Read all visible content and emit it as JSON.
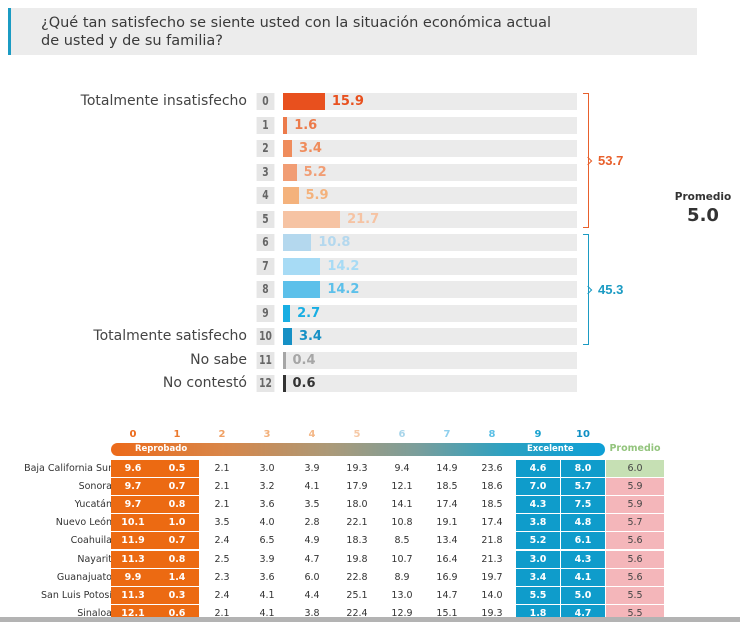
{
  "question": {
    "line1": "¿Qué tan satisfecho se siente usted con la situación económica actual",
    "line2": "de usted y de su familia?"
  },
  "colors": {
    "title_accent": "#1b9bc3",
    "unsatisfied_group": "#e8602c",
    "satisfied_group": "#1b9bc3"
  },
  "chart_data": {
    "type": "bar",
    "orientation": "horizontal",
    "categories": [
      "0",
      "1",
      "2",
      "3",
      "4",
      "5",
      "6",
      "7",
      "8",
      "9",
      "10",
      "11",
      "12"
    ],
    "row_labels": {
      "0": "Totalmente insatisfecho",
      "10": "Totalmente satisfecho",
      "11": "No sabe",
      "12": "No contestó"
    },
    "values": [
      15.9,
      1.6,
      3.4,
      5.2,
      5.9,
      21.7,
      10.8,
      14.2,
      14.2,
      2.7,
      3.4,
      0.4,
      0.6
    ],
    "value_labels": [
      "15.9",
      "1.6",
      "3.4",
      "5.2",
      "5.9",
      "21.7",
      "10.8",
      "14.2",
      "14.2",
      "2.7",
      "3.4",
      "0.4",
      "0.6"
    ],
    "bar_colors": [
      "#e8501e",
      "#ec7a4a",
      "#ef8c5c",
      "#f19d74",
      "#f4b27c",
      "#f6c3a3",
      "#b4d8ee",
      "#a7dbf5",
      "#5cc0ea",
      "#18aee3",
      "#1690c5",
      "#a6a6a6",
      "#333333"
    ],
    "label_colors": [
      "#e8501e",
      "#ec7a4a",
      "#ef8c5c",
      "#f19d74",
      "#f4b27c",
      "#f6c3a3",
      "#b4d8ee",
      "#a7dbf5",
      "#5cc0ea",
      "#18aee3",
      "#1690c5",
      "#a6a6a6",
      "#333333"
    ],
    "xlim": [
      0,
      100
    ],
    "groups": [
      {
        "name": "unsatisfied",
        "from": "0",
        "to": "5",
        "total": "53.7",
        "color": "#e8602c"
      },
      {
        "name": "satisfied",
        "from": "6",
        "to": "10",
        "total": "45.3",
        "color": "#1b9bc3"
      }
    ],
    "average_label": "Promedio",
    "average_value": "5.0"
  },
  "table": {
    "columns": [
      "0",
      "1",
      "2",
      "3",
      "4",
      "5",
      "6",
      "7",
      "8",
      "9",
      "10"
    ],
    "column_colors": [
      "#ec6a1a",
      "#ec7a2e",
      "#f0a064",
      "#f3b07a",
      "#f4b888",
      "#f6c9a6",
      "#a8d5ea",
      "#8fd0ee",
      "#5bbfe5",
      "#1aa2cf",
      "#0e8fc4"
    ],
    "scale_left": "Reprobado",
    "scale_right": "Excelente",
    "promedio_header": "Promedio",
    "rows": [
      {
        "state": "Baja California Sur",
        "values": [
          "9.6",
          "0.5",
          "2.1",
          "3.0",
          "3.9",
          "19.3",
          "9.4",
          "14.9",
          "23.6",
          "4.6",
          "8.0"
        ],
        "promedio": "6.0",
        "promedio_color": "#c6e0b4"
      },
      {
        "state": "Sonora",
        "values": [
          "9.7",
          "0.7",
          "2.1",
          "3.2",
          "4.1",
          "17.9",
          "12.1",
          "18.5",
          "18.6",
          "7.0",
          "5.7"
        ],
        "promedio": "5.9",
        "promedio_color": "#f4b6ba"
      },
      {
        "state": "Yucatán",
        "values": [
          "9.7",
          "0.8",
          "2.1",
          "3.6",
          "3.5",
          "18.0",
          "14.1",
          "17.4",
          "18.5",
          "4.3",
          "7.5"
        ],
        "promedio": "5.9",
        "promedio_color": "#f4b6ba"
      },
      {
        "state": "Nuevo León",
        "values": [
          "10.1",
          "1.0",
          "3.5",
          "4.0",
          "2.8",
          "22.1",
          "10.8",
          "19.1",
          "17.4",
          "3.8",
          "4.8"
        ],
        "promedio": "5.7",
        "promedio_color": "#f4b6ba"
      },
      {
        "state": "Coahuila",
        "values": [
          "11.9",
          "0.7",
          "2.4",
          "6.5",
          "4.9",
          "18.3",
          "8.5",
          "13.4",
          "21.8",
          "5.2",
          "6.1"
        ],
        "promedio": "5.6",
        "promedio_color": "#f4b6ba"
      },
      {
        "state": "Nayarit",
        "values": [
          "11.3",
          "0.8",
          "2.5",
          "3.9",
          "4.7",
          "19.8",
          "10.7",
          "16.4",
          "21.3",
          "3.0",
          "4.3"
        ],
        "promedio": "5.6",
        "promedio_color": "#f4b6ba"
      },
      {
        "state": "Guanajuato",
        "values": [
          "9.9",
          "1.4",
          "2.3",
          "3.6",
          "6.0",
          "22.8",
          "8.9",
          "16.9",
          "19.7",
          "3.4",
          "4.1"
        ],
        "promedio": "5.6",
        "promedio_color": "#f4b6ba"
      },
      {
        "state": "San Luis Potosí",
        "values": [
          "11.3",
          "0.3",
          "2.4",
          "4.1",
          "4.4",
          "25.1",
          "13.0",
          "14.7",
          "14.0",
          "5.5",
          "5.0"
        ],
        "promedio": "5.5",
        "promedio_color": "#f4b6ba"
      },
      {
        "state": "Sinaloa",
        "values": [
          "12.1",
          "0.6",
          "2.1",
          "4.1",
          "3.8",
          "22.4",
          "12.9",
          "15.1",
          "19.3",
          "1.8",
          "4.7"
        ],
        "promedio": "5.5",
        "promedio_color": "#f4b6ba"
      }
    ]
  }
}
